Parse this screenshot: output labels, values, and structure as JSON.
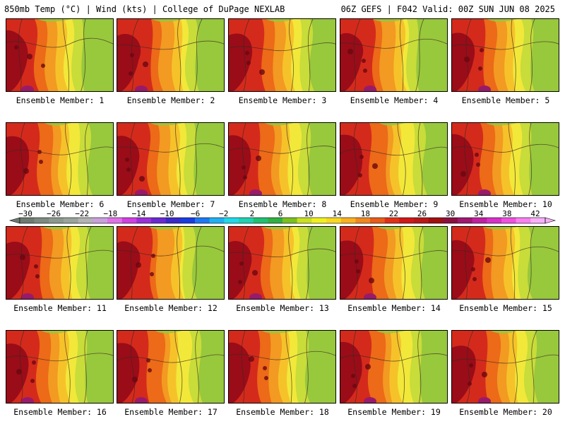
{
  "header": {
    "left_title": "850mb Temp (°C) | Wind (kts) | College of DuPage NEXLAB",
    "right_title": "06Z GEFS | F042 Valid: 00Z SUN JUN 08 2025"
  },
  "members": [
    {
      "label": "Ensemble Member: 1"
    },
    {
      "label": "Ensemble Member: 2"
    },
    {
      "label": "Ensemble Member: 3"
    },
    {
      "label": "Ensemble Member: 4"
    },
    {
      "label": "Ensemble Member: 5"
    },
    {
      "label": "Ensemble Member: 6"
    },
    {
      "label": "Ensemble Member: 7"
    },
    {
      "label": "Ensemble Member: 8"
    },
    {
      "label": "Ensemble Member: 9"
    },
    {
      "label": "Ensemble Member: 10"
    },
    {
      "label": "Ensemble Member: 11"
    },
    {
      "label": "Ensemble Member: 12"
    },
    {
      "label": "Ensemble Member: 13"
    },
    {
      "label": "Ensemble Member: 14"
    },
    {
      "label": "Ensemble Member: 15"
    },
    {
      "label": "Ensemble Member: 16"
    },
    {
      "label": "Ensemble Member: 17"
    },
    {
      "label": "Ensemble Member: 18"
    },
    {
      "label": "Ensemble Member: 19"
    },
    {
      "label": "Ensemble Member: 20"
    }
  ],
  "colorbar": {
    "tick_labels": [
      "−30",
      "−26",
      "−22",
      "−18",
      "−14",
      "−10",
      "−6",
      "−2",
      "2",
      "6",
      "10",
      "14",
      "18",
      "22",
      "26",
      "30",
      "34",
      "38",
      "42"
    ],
    "colors": [
      "#6e7b71",
      "#7d8a80",
      "#8c988e",
      "#9aa39c",
      "#b3b3b3",
      "#c8a0dc",
      "#e070e8",
      "#d040e0",
      "#9a30d8",
      "#6a2ad0",
      "#3a2ac8",
      "#1a3ce0",
      "#1e78f0",
      "#20b0f0",
      "#20d8e8",
      "#20d0b0",
      "#20c070",
      "#30b040",
      "#7ac020",
      "#c8e020",
      "#f0f020",
      "#f8d820",
      "#f8b020",
      "#f08820",
      "#e85c18",
      "#e03018",
      "#d01818",
      "#b81818",
      "#a01010",
      "#8a1040",
      "#a01870",
      "#c020a0",
      "#d830c8",
      "#f050e0",
      "#f880f0",
      "#f8b0f8"
    ]
  },
  "map_colors": {
    "hot": "#9a0c18",
    "warm": "#d42a1c",
    "orange": "#ec6a18",
    "lightorange": "#f29a22",
    "gold": "#f6c22a",
    "yellow": "#f2e83a",
    "lime": "#c8dc3a",
    "green": "#98c83c",
    "magenta": "#9a1a6a"
  }
}
